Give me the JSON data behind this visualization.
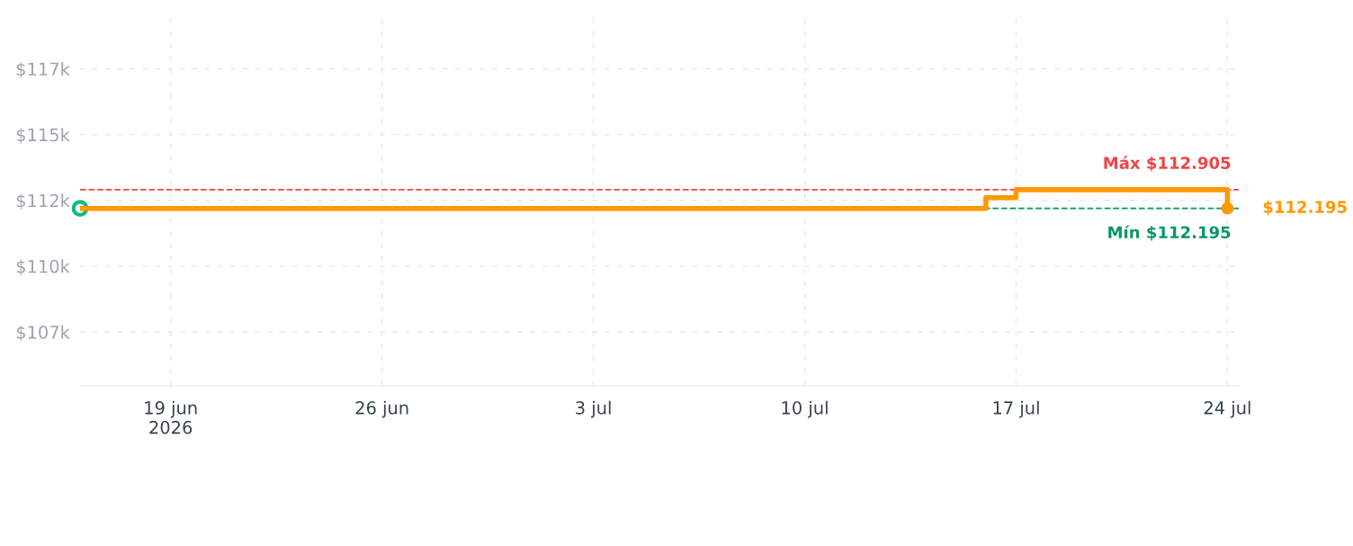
{
  "chart_data": {
    "type": "step",
    "series": [
      {
        "color": "#ff9900",
        "x": [
          "2026-06-16",
          "2026-07-16",
          "2026-07-17",
          "2026-07-24"
        ],
        "values": [
          112.195,
          112.6,
          112.905,
          112.195
        ],
        "marker": "none"
      },
      {
        "type": "scatter",
        "color": "#10b981",
        "x": [
          "2026-06-16"
        ],
        "values": [
          112.195
        ],
        "marker": "circle"
      },
      {
        "type": "scatter",
        "color": "#ff9900",
        "x": [
          "2026-07-24"
        ],
        "values": [
          112.195
        ],
        "marker": "circle"
      }
    ],
    "xlim": [
      "2026-06-16",
      "2026-07-24T09:00"
    ],
    "xticks": [
      {
        "value": "2026-06-19",
        "label": "19 jun\n2026"
      },
      {
        "value": "2026-06-26",
        "label": "26 jun"
      },
      {
        "value": "2026-07-03",
        "label": "3 jul"
      },
      {
        "value": "2026-07-10",
        "label": "10 jul"
      },
      {
        "value": "2026-07-17",
        "label": "17 jul"
      },
      {
        "value": "2026-07-24",
        "label": "24 jul"
      }
    ],
    "ylim": [
      105.45,
      119.6
    ],
    "yticks": [
      {
        "value": 107.5,
        "label": "$107k"
      },
      {
        "value": 110,
        "label": "$110k"
      },
      {
        "value": 112.5,
        "label": "$112k"
      },
      {
        "value": 115,
        "label": "$115k"
      },
      {
        "value": 117.5,
        "label": "$117k"
      }
    ],
    "ref_lines": [
      {
        "axis": "y",
        "value": 112.905,
        "label": "Máx $112.905",
        "color": "#ef4444",
        "line_style": "dashed"
      },
      {
        "axis": "y",
        "value": 112.195,
        "label": "Mín $112.195",
        "color": "#059669",
        "line_style": "dashed"
      }
    ],
    "annotations": [
      {
        "text": "$112.195",
        "x": "2026-07-24",
        "y": 112.195
      }
    ],
    "grid": true,
    "line_style": "solid"
  }
}
